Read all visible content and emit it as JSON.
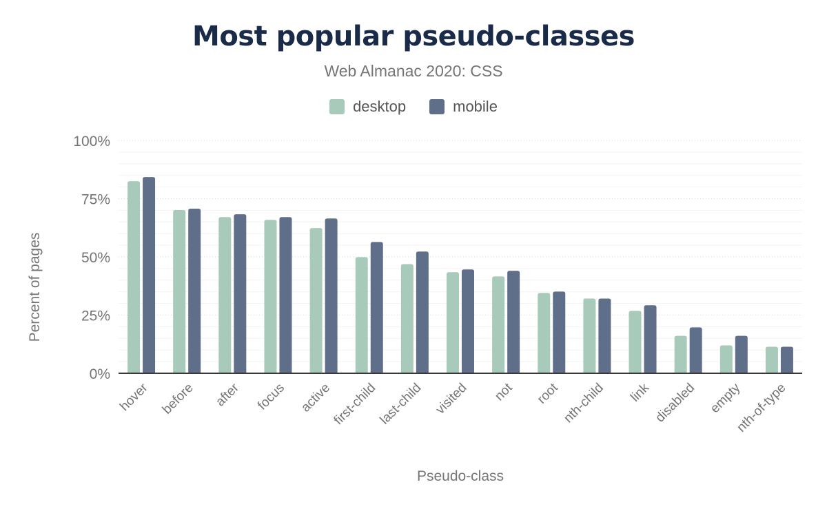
{
  "chart_data": {
    "type": "bar",
    "title": "Most popular pseudo-classes",
    "subtitle": "Web Almanac 2020: CSS",
    "xlabel": "Pseudo-class",
    "ylabel": "Percent of pages",
    "ylim": [
      0,
      100
    ],
    "yticks": [
      "0%",
      "25%",
      "50%",
      "75%",
      "100%"
    ],
    "grid": true,
    "legend_position": "top",
    "categories": [
      "hover",
      "before",
      "after",
      "focus",
      "active",
      "first-child",
      "last-child",
      "visited",
      "not",
      "root",
      "nth-child",
      "link",
      "disabled",
      "empty",
      "nth-of-type"
    ],
    "series": [
      {
        "name": "desktop",
        "color": "#a8cabb",
        "values": [
          82.5,
          70.1,
          67.1,
          65.9,
          62.4,
          49.9,
          46.9,
          43.4,
          41.6,
          34.5,
          32.1,
          26.8,
          16.1,
          12.0,
          11.4
        ]
      },
      {
        "name": "mobile",
        "color": "#5f6f8a",
        "values": [
          84.3,
          70.7,
          68.3,
          67.1,
          66.5,
          56.4,
          52.3,
          44.6,
          44.0,
          35.1,
          32.1,
          29.2,
          19.7,
          16.1,
          11.4
        ]
      }
    ]
  }
}
